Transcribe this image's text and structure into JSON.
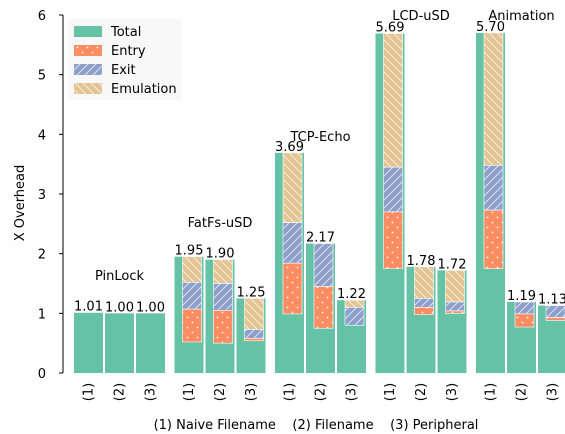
{
  "chart_data": {
    "type": "bar",
    "stacked_overlay": true,
    "ylabel": "X Overhead",
    "ylim": [
      0,
      6
    ],
    "yticks": [
      0,
      1,
      2,
      3,
      4,
      5,
      6
    ],
    "caption": "(1) Naive Filename    (2) Filename    (3) Peripheral",
    "legend": {
      "placement": "top-left",
      "entries": [
        {
          "key": "total",
          "name": "Total"
        },
        {
          "key": "entry",
          "name": "Entry"
        },
        {
          "key": "exit",
          "name": "Exit"
        },
        {
          "key": "emulation",
          "name": "Emulation"
        }
      ]
    },
    "colors": {
      "total": "#66c2a5",
      "entry": "#fc8d62",
      "exit": "#8da0cb",
      "emulation": "#e5c494"
    },
    "bar_category_labels": [
      "(1)",
      "(2)",
      "(3)"
    ],
    "groups": [
      {
        "name": "PinLock",
        "bars": [
          {
            "category": "(1)",
            "total": 1.01,
            "label": "1.01",
            "entry": 0,
            "exit": 0,
            "emulation": 0
          },
          {
            "category": "(2)",
            "total": 1.0,
            "label": "1.00",
            "entry": 0,
            "exit": 0,
            "emulation": 0
          },
          {
            "category": "(3)",
            "total": 1.0,
            "label": "1.00",
            "entry": 0,
            "exit": 0,
            "emulation": 0
          }
        ]
      },
      {
        "name": "FatFs-uSD",
        "bars": [
          {
            "category": "(1)",
            "total": 1.95,
            "label": "1.95",
            "entry": 0.55,
            "exit": 0.45,
            "emulation": 0.43
          },
          {
            "category": "(2)",
            "total": 1.9,
            "label": "1.90",
            "entry": 0.55,
            "exit": 0.45,
            "emulation": 0.4
          },
          {
            "category": "(3)",
            "total": 1.25,
            "label": "1.25",
            "entry": 0.04,
            "exit": 0.15,
            "emulation": 0.52
          }
        ]
      },
      {
        "name": "TCP-Echo",
        "bars": [
          {
            "category": "(1)",
            "total": 3.69,
            "label": "3.69",
            "entry": 0.85,
            "exit": 0.68,
            "emulation": 1.17
          },
          {
            "category": "(2)",
            "total": 2.17,
            "label": "2.17",
            "entry": 0.7,
            "exit": 0.72,
            "emulation": 0.0
          },
          {
            "category": "(3)",
            "total": 1.22,
            "label": "1.22",
            "entry": 0.0,
            "exit": 0.3,
            "emulation": 0.12
          }
        ]
      },
      {
        "name": "LCD-uSD",
        "bars": [
          {
            "category": "(1)",
            "total": 5.69,
            "label": "5.69",
            "entry": 0.95,
            "exit": 0.75,
            "emulation": 2.24
          },
          {
            "category": "(2)",
            "total": 1.78,
            "label": "1.78",
            "entry": 0.12,
            "exit": 0.15,
            "emulation": 0.53
          },
          {
            "category": "(3)",
            "total": 1.72,
            "label": "1.72",
            "entry": 0.04,
            "exit": 0.15,
            "emulation": 0.53
          }
        ]
      },
      {
        "name": "Animation",
        "bars": [
          {
            "category": "(1)",
            "total": 5.7,
            "label": "5.70",
            "entry": 0.98,
            "exit": 0.75,
            "emulation": 2.22
          },
          {
            "category": "(2)",
            "total": 1.19,
            "label": "1.19",
            "entry": 0.22,
            "exit": 0.2,
            "emulation": 0.0
          },
          {
            "category": "(3)",
            "total": 1.13,
            "label": "1.13",
            "entry": 0.05,
            "exit": 0.2,
            "emulation": 0.0
          }
        ]
      }
    ]
  }
}
